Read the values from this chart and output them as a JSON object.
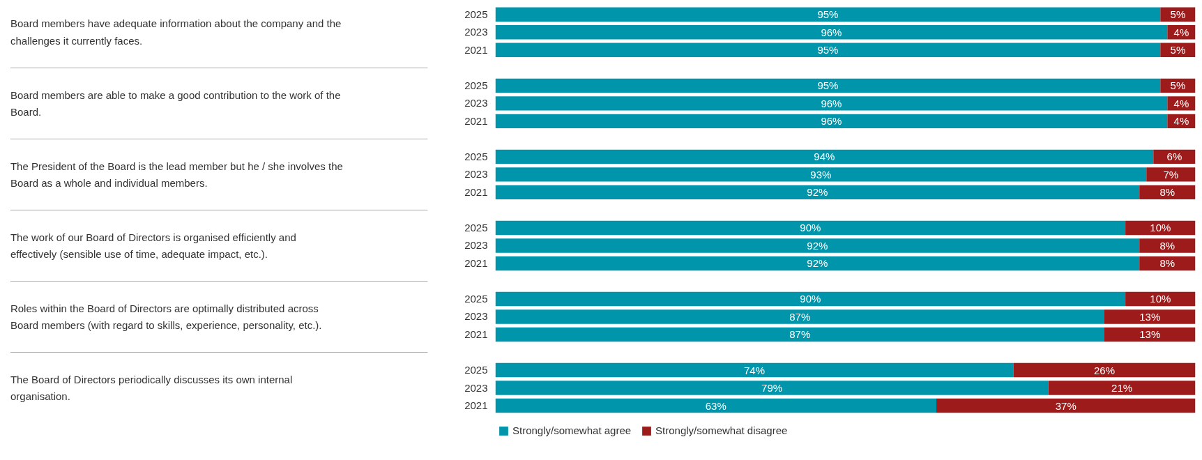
{
  "chart_data": {
    "type": "bar",
    "orientation": "horizontal",
    "stacked": true,
    "legend": "bottom",
    "grid": false,
    "tick_labels": "y",
    "xlim": [
      0,
      100
    ],
    "categories": [
      "2025",
      "2023",
      "2021",
      "2025",
      "2023",
      "2021",
      "2025",
      "2023",
      "2021",
      "2025",
      "2023",
      "2021",
      "2025",
      "2023",
      "2021",
      "2025",
      "2023",
      "2021"
    ],
    "annotations": [
      "Board members have adequate information about the company and the challenges it currently faces.",
      "Board members are able to make a good contribution to the work of the Board.",
      "The President of the Board is the lead member but he / she involves the Board as a whole and individual members.",
      "The work of our Board of Directors is organised efficiently and effectively (sensible use of time, adequate impact, etc.).",
      "Roles within the Board of Directors are optimally distributed across Board members (with regard to skills, experience, personality, etc.).",
      "The Board of Directors periodically discusses its own internal organisation."
    ],
    "series": [
      {
        "name": "Strongly/somewhat agree",
        "color": "#0095aa",
        "values": [
          95,
          96,
          95,
          95,
          96,
          96,
          94,
          93,
          92,
          90,
          92,
          92,
          90,
          87,
          87,
          74,
          79,
          63
        ],
        "value_labels": [
          "95%",
          "96%",
          "95%",
          "95%",
          "96%",
          "96%",
          "94%",
          "93%",
          "92%",
          "90%",
          "92%",
          "92%",
          "90%",
          "87%",
          "87%",
          "74%",
          "79%",
          "63%"
        ]
      },
      {
        "name": "Strongly/somewhat disagree",
        "color": "#9e1b1b",
        "values": [
          5,
          4,
          5,
          5,
          4,
          4,
          6,
          7,
          8,
          10,
          8,
          8,
          10,
          13,
          13,
          26,
          21,
          37
        ],
        "value_labels": [
          "5%",
          "4%",
          "5%",
          "5%",
          "4%",
          "4%",
          "6%",
          "7%",
          "8%",
          "10%",
          "8%",
          "8%",
          "10%",
          "13%",
          "13%",
          "26%",
          "21%",
          "37%"
        ]
      }
    ]
  }
}
